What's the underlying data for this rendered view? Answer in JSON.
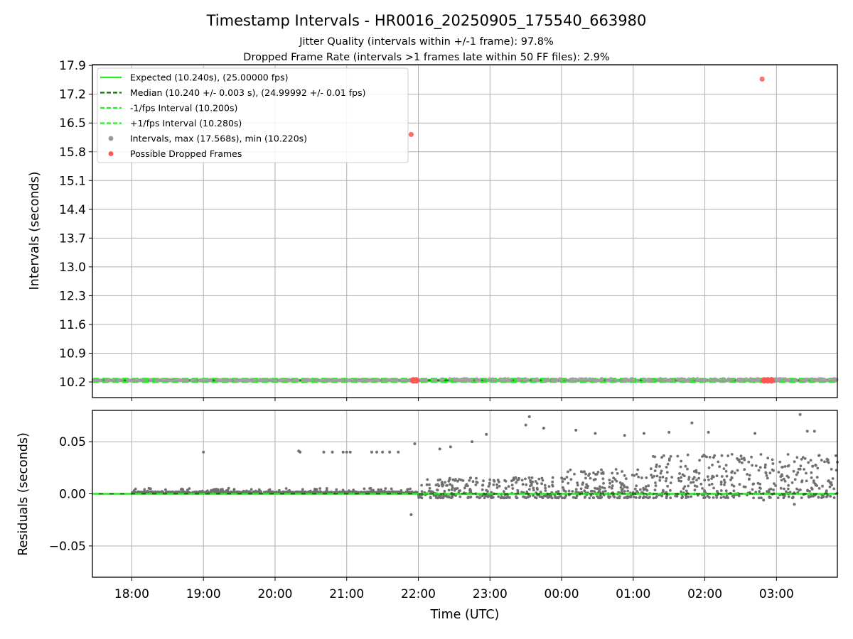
{
  "chart_data": [
    {
      "type": "scatter",
      "title": "Timestamp Intervals - HR0016_20250905_175540_663980",
      "subtitles": [
        "Jitter Quality (intervals within +/-1 frame): 97.8%",
        "Dropped Frame Rate (intervals >1 frames late within 50 FF files): 2.9%"
      ],
      "ylabel": "Intervals (seconds)",
      "xlabel": "",
      "ylim": [
        9.82,
        17.92
      ],
      "x_range_hours": [
        17.45,
        27.85
      ],
      "y_ticks": [
        "10.2",
        "10.9",
        "11.6",
        "12.3",
        "13.0",
        "13.7",
        "14.4",
        "15.1",
        "15.8",
        "16.5",
        "17.2",
        "17.9"
      ],
      "grid": true,
      "legend_position": "upper-left",
      "legend": [
        {
          "label": "Expected (10.240s), (25.00000 fps)",
          "style": "line-solid",
          "color": "#22ee22"
        },
        {
          "label": "Median (10.240 +/- 0.003 s), (24.99992 +/- 0.01 fps)",
          "style": "line-dashed",
          "color": "#007700"
        },
        {
          "label": "-1/fps Interval (10.200s)",
          "style": "line-dashed",
          "color": "#22ee22"
        },
        {
          "label": "+1/fps Interval (10.280s)",
          "style": "line-dashed",
          "color": "#22ee22"
        },
        {
          "label": "Intervals, max (17.568s), min (10.220s)",
          "style": "marker",
          "color": "#999999"
        },
        {
          "label": "Possible Dropped Frames",
          "style": "marker",
          "color": "#ff5555"
        }
      ],
      "lines": {
        "expected": 10.24,
        "median": 10.24,
        "minus_1fps": 10.2,
        "plus_1fps": 10.28
      },
      "dropped_frames": [
        {
          "x": 21.9,
          "y": 16.22
        },
        {
          "x": 26.8,
          "y": 17.568
        },
        {
          "x": 21.93,
          "y": 10.24
        },
        {
          "x": 21.97,
          "y": 10.24
        },
        {
          "x": 26.83,
          "y": 10.24
        },
        {
          "x": 26.88,
          "y": 10.24
        },
        {
          "x": 26.93,
          "y": 10.24
        }
      ],
      "colors": {
        "intervals": "#a0a0a0",
        "dropped": "#ff5555",
        "expected": "#22ee22",
        "median": "#007700"
      }
    },
    {
      "type": "scatter",
      "xlabel": "Time (UTC)",
      "ylabel": "Residuals (seconds)",
      "ylim": [
        -0.08,
        0.08
      ],
      "y_ticks": [
        {
          "value": 0.05,
          "label": "0.05"
        },
        {
          "value": 0.0,
          "label": "0.00"
        },
        {
          "value": -0.05,
          "label": "−0.05"
        }
      ],
      "x_ticks": [
        {
          "hour": 18,
          "label": "18:00"
        },
        {
          "hour": 19,
          "label": "19:00"
        },
        {
          "hour": 20,
          "label": "20:00"
        },
        {
          "hour": 21,
          "label": "21:00"
        },
        {
          "hour": 22,
          "label": "22:00"
        },
        {
          "hour": 23,
          "label": "23:00"
        },
        {
          "hour": 24,
          "label": "00:00"
        },
        {
          "hour": 25,
          "label": "01:00"
        },
        {
          "hour": 26,
          "label": "02:00"
        },
        {
          "hour": 27,
          "label": "03:00"
        }
      ],
      "grid": true,
      "outlier_points": [
        {
          "x": 19.0,
          "y": 0.04
        },
        {
          "x": 20.33,
          "y": 0.041
        },
        {
          "x": 20.35,
          "y": 0.04
        },
        {
          "x": 20.68,
          "y": 0.04
        },
        {
          "x": 20.8,
          "y": 0.04
        },
        {
          "x": 20.95,
          "y": 0.04
        },
        {
          "x": 21.0,
          "y": 0.04
        },
        {
          "x": 21.05,
          "y": 0.04
        },
        {
          "x": 21.35,
          "y": 0.04
        },
        {
          "x": 21.42,
          "y": 0.04
        },
        {
          "x": 21.5,
          "y": 0.04
        },
        {
          "x": 21.6,
          "y": 0.04
        },
        {
          "x": 21.72,
          "y": 0.04
        },
        {
          "x": 21.95,
          "y": 0.048
        },
        {
          "x": 21.9,
          "y": -0.02
        },
        {
          "x": 22.3,
          "y": 0.043
        },
        {
          "x": 22.45,
          "y": 0.045
        },
        {
          "x": 22.75,
          "y": 0.05
        },
        {
          "x": 22.95,
          "y": 0.057
        },
        {
          "x": 23.55,
          "y": 0.074
        },
        {
          "x": 23.5,
          "y": 0.066
        },
        {
          "x": 23.75,
          "y": 0.063
        },
        {
          "x": 24.2,
          "y": 0.061
        },
        {
          "x": 24.47,
          "y": 0.058
        },
        {
          "x": 24.88,
          "y": 0.056
        },
        {
          "x": 25.15,
          "y": 0.058
        },
        {
          "x": 25.5,
          "y": 0.059
        },
        {
          "x": 25.82,
          "y": 0.068
        },
        {
          "x": 26.05,
          "y": 0.059
        },
        {
          "x": 26.7,
          "y": 0.058
        },
        {
          "x": 27.33,
          "y": 0.076
        },
        {
          "x": 27.43,
          "y": 0.06
        },
        {
          "x": 27.53,
          "y": 0.06
        },
        {
          "x": 26.82,
          "y": -0.006
        },
        {
          "x": 27.25,
          "y": -0.01
        }
      ],
      "lines": {
        "zero": 0.0
      },
      "colors": {
        "residuals": "#707070",
        "zero_line": "#007700",
        "zero_dashed": "#22ee22"
      }
    }
  ]
}
